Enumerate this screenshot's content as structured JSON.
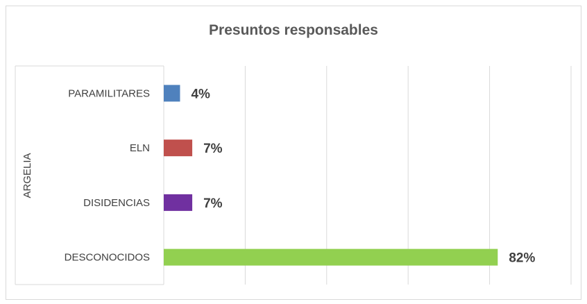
{
  "chart_data": {
    "type": "bar",
    "orientation": "horizontal",
    "title": "Presuntos responsables",
    "group_label": "ARGELIA",
    "categories": [
      "PARAMILITARES",
      "ELN",
      "DISIDENCIAS",
      "DESCONOCIDOS"
    ],
    "values": [
      4,
      7,
      7,
      82
    ],
    "value_labels": [
      "4%",
      "7%",
      "7%",
      "82%"
    ],
    "colors": [
      "#4f81bd",
      "#c0504d",
      "#7030a0",
      "#92d050"
    ],
    "xlim": [
      0,
      100
    ],
    "grid": true,
    "legend": "none"
  }
}
